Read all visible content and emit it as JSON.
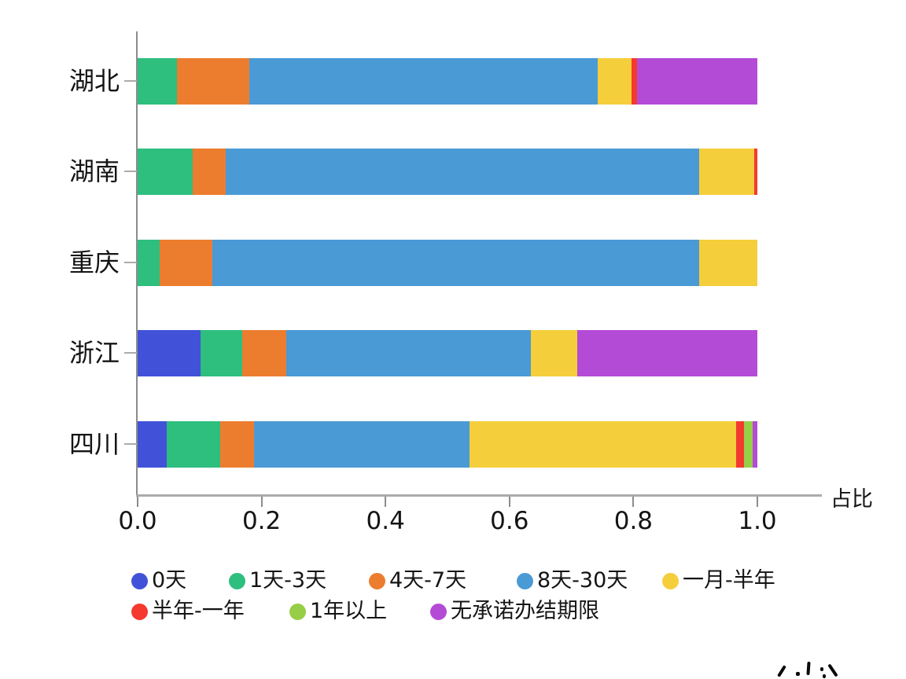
{
  "chart_data": {
    "type": "bar",
    "subtype": "horizontal-stacked",
    "title": "",
    "xlabel": "占比",
    "ylabel": "",
    "xlim": [
      0.0,
      1.0
    ],
    "x_ticks": [
      "0.0",
      "0.2",
      "0.4",
      "0.6",
      "0.8",
      "1.0"
    ],
    "grid": false,
    "legend_position": "bottom",
    "categories": [
      "湖北",
      "湖南",
      "重庆",
      "浙江",
      "四川"
    ],
    "series": [
      {
        "name": "0天",
        "color": "#4152d9",
        "values": [
          0,
          0,
          0,
          0.102,
          0.047
        ]
      },
      {
        "name": "1天-3天",
        "color": "#2ebe7e",
        "values": [
          0.063,
          0.089,
          0.036,
          0.067,
          0.086
        ]
      },
      {
        "name": "4天-7天",
        "color": "#ec7d2f",
        "values": [
          0.117,
          0.053,
          0.085,
          0.071,
          0.055
        ]
      },
      {
        "name": "8天-30天",
        "color": "#4a9ad6",
        "values": [
          0.562,
          0.764,
          0.785,
          0.395,
          0.348
        ]
      },
      {
        "name": "一月-半年",
        "color": "#f5ce3b",
        "values": [
          0.055,
          0.089,
          0.094,
          0.074,
          0.43
        ]
      },
      {
        "name": "半年-一年",
        "color": "#f4392f",
        "values": [
          0.009,
          0.005,
          0,
          0,
          0.012
        ]
      },
      {
        "name": "1年以上",
        "color": "#97ce47",
        "values": [
          0,
          0,
          0,
          0,
          0.014
        ]
      },
      {
        "name": "无承诺办结期限",
        "color": "#b44bd6",
        "values": [
          0.194,
          0,
          0,
          0.291,
          0.008
        ]
      }
    ]
  }
}
